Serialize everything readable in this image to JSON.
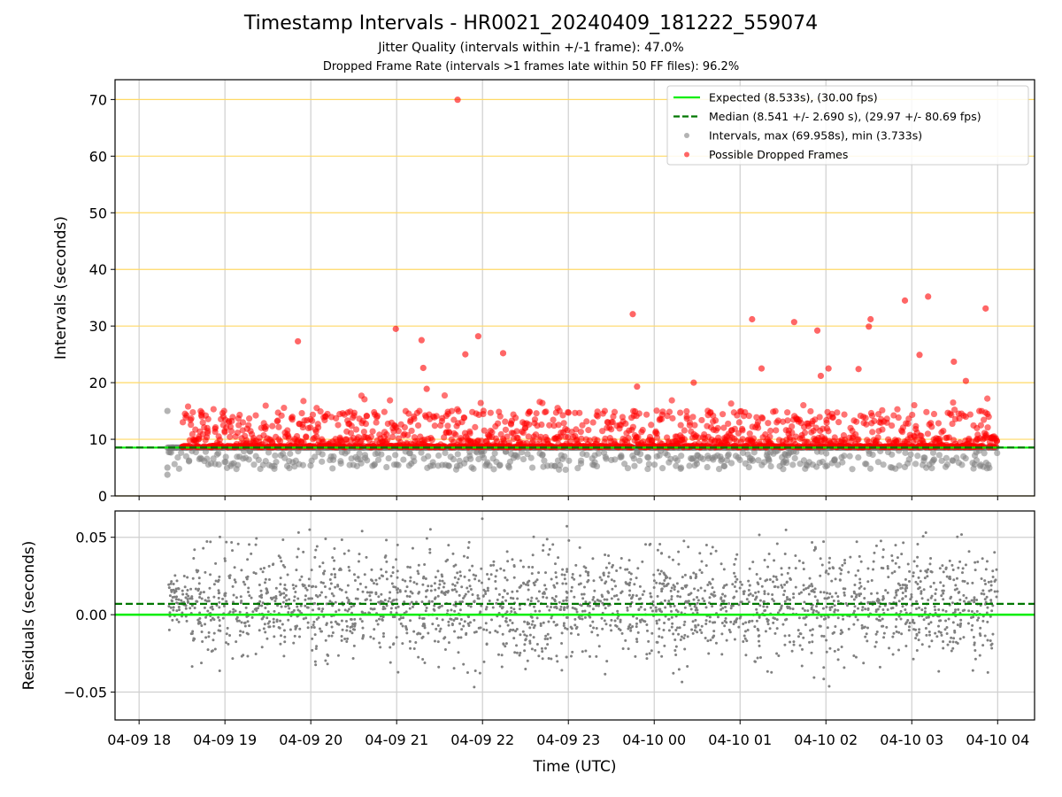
{
  "title": "Timestamp Intervals - HR0021_20240409_181222_559074",
  "subtitle1": "Jitter Quality (intervals within +/-1 frame): 47.0%",
  "subtitle2": "Dropped Frame Rate (intervals >1 frames late within 50 FF files): 96.2%",
  "colors": {
    "expected": "#00ee00",
    "median": "#007700",
    "intervals": "#808080",
    "dropped": "#ff0000",
    "hgrid_top": "#ffd966",
    "grid": "#cfcfcf"
  },
  "chart_data": [
    {
      "type": "scatter",
      "panel": "intervals",
      "ylabel": "Intervals (seconds)",
      "ylim": [
        0,
        73.5
      ],
      "yticks": [
        0,
        10,
        20,
        30,
        40,
        50,
        60,
        70
      ],
      "grid": true,
      "legend_position": "top-right",
      "legend": [
        {
          "label": "Expected (8.533s), (30.00 fps)",
          "style": "solid-line",
          "color": "#00ee00"
        },
        {
          "label": "Median (8.541 +/- 2.690 s), (29.97 +/- 80.69 fps)",
          "style": "dashed-line",
          "color": "#007700"
        },
        {
          "label": "Intervals, max (69.958s), min (3.733s)",
          "style": "marker",
          "color": "#808080"
        },
        {
          "label": "Possible Dropped Frames",
          "style": "marker",
          "color": "#ff0000"
        }
      ],
      "expected_interval": 8.533,
      "median_interval": 8.541,
      "max_interval": 69.958,
      "min_interval": 3.733,
      "outliers": [
        {
          "x": 18.33,
          "y": 15.0,
          "series": "intervals"
        },
        {
          "x": 18.33,
          "y": 5.0,
          "series": "intervals"
        },
        {
          "x": 18.33,
          "y": 3.733,
          "series": "intervals"
        },
        {
          "x": 19.85,
          "y": 27.3,
          "series": "dropped"
        },
        {
          "x": 20.99,
          "y": 29.5,
          "series": "dropped"
        },
        {
          "x": 21.29,
          "y": 27.5,
          "series": "dropped"
        },
        {
          "x": 21.31,
          "y": 22.6,
          "series": "dropped"
        },
        {
          "x": 21.35,
          "y": 18.9,
          "series": "dropped"
        },
        {
          "x": 21.71,
          "y": 69.958,
          "series": "dropped"
        },
        {
          "x": 21.8,
          "y": 25.0,
          "series": "dropped"
        },
        {
          "x": 21.95,
          "y": 28.2,
          "series": "dropped"
        },
        {
          "x": 22.24,
          "y": 25.2,
          "series": "dropped"
        },
        {
          "x": 23.75,
          "y": 32.1,
          "series": "dropped"
        },
        {
          "x": 23.8,
          "y": 19.3,
          "series": "dropped"
        },
        {
          "x": 24.46,
          "y": 20.0,
          "series": "dropped"
        },
        {
          "x": 25.14,
          "y": 31.2,
          "series": "dropped"
        },
        {
          "x": 25.25,
          "y": 22.5,
          "series": "dropped"
        },
        {
          "x": 25.63,
          "y": 30.7,
          "series": "dropped"
        },
        {
          "x": 25.9,
          "y": 29.2,
          "series": "dropped"
        },
        {
          "x": 25.94,
          "y": 21.2,
          "series": "dropped"
        },
        {
          "x": 26.03,
          "y": 22.5,
          "series": "dropped"
        },
        {
          "x": 26.38,
          "y": 22.4,
          "series": "dropped"
        },
        {
          "x": 26.5,
          "y": 29.9,
          "series": "dropped"
        },
        {
          "x": 26.52,
          "y": 31.2,
          "series": "dropped"
        },
        {
          "x": 26.92,
          "y": 34.5,
          "series": "dropped"
        },
        {
          "x": 27.09,
          "y": 24.9,
          "series": "dropped"
        },
        {
          "x": 27.19,
          "y": 35.2,
          "series": "dropped"
        },
        {
          "x": 27.49,
          "y": 23.7,
          "series": "dropped"
        },
        {
          "x": 27.63,
          "y": 20.3,
          "series": "dropped"
        },
        {
          "x": 27.86,
          "y": 33.1,
          "series": "dropped"
        }
      ]
    },
    {
      "type": "scatter",
      "panel": "residuals",
      "ylabel": "Residuals (seconds)",
      "xlabel": "Time (UTC)",
      "ylim": [
        -0.068,
        0.067
      ],
      "yticks": [
        -0.05,
        0.0,
        0.05
      ],
      "ytick_labels": [
        "−0.05",
        "0.00",
        "0.05"
      ],
      "grid": true,
      "expected_residual": 0.0,
      "median_residual": 0.007,
      "xlim_hours": [
        17.72,
        28.43
      ],
      "xticks_hours": [
        18,
        19,
        20,
        21,
        22,
        23,
        24,
        25,
        26,
        27,
        28
      ],
      "xtick_labels": [
        "04-09  18",
        "04-09  19",
        "04-09  20",
        "04-09  21",
        "04-09  22",
        "04-09  23",
        "04-10  00",
        "04-10  01",
        "04-10  02",
        "04-10  03",
        "04-10  04"
      ]
    }
  ]
}
